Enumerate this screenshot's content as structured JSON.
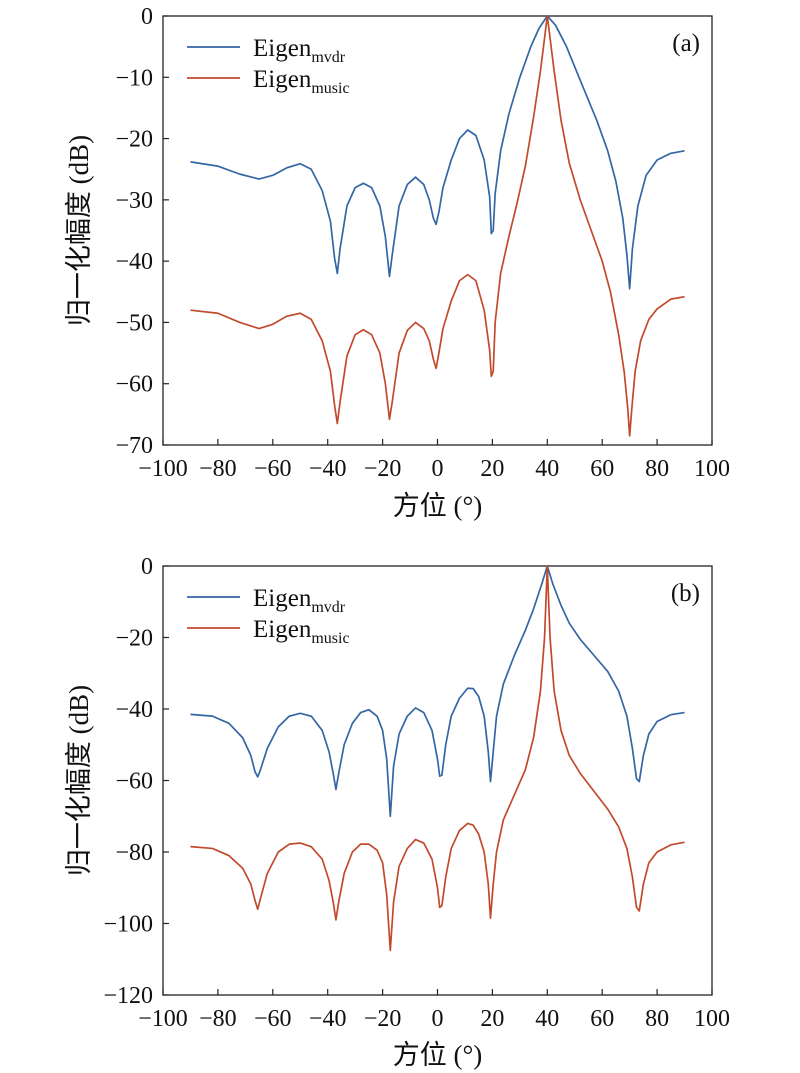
{
  "chart_data": [
    {
      "type": "line",
      "panel_label": "(a)",
      "xlabel": "方位 (°)",
      "ylabel": "归一化幅度 (dB)",
      "xlim": [
        -100,
        100
      ],
      "ylim": [
        -70,
        0
      ],
      "xticks": [
        -100,
        -80,
        -60,
        -40,
        -20,
        0,
        20,
        40,
        60,
        80,
        100
      ],
      "yticks": [
        0,
        -10,
        -20,
        -30,
        -40,
        -50,
        -60,
        -70
      ],
      "grid": false,
      "legend_position": "top-left",
      "colors": {
        "mvdr": "#3466a3",
        "music": "#c24a2c"
      },
      "series": [
        {
          "name": "Eigen",
          "subscript": "mvdr",
          "color": "#3466a3",
          "points": [
            [
              -90,
              -23.8
            ],
            [
              -80,
              -24.5
            ],
            [
              -72,
              -25.8
            ],
            [
              -65,
              -26.6
            ],
            [
              -60,
              -26.0
            ],
            [
              -55,
              -24.8
            ],
            [
              -50,
              -24.1
            ],
            [
              -46,
              -25.0
            ],
            [
              -42,
              -28.5
            ],
            [
              -39,
              -33.5
            ],
            [
              -37.5,
              -39.5
            ],
            [
              -36.5,
              -42.0
            ],
            [
              -35.5,
              -38.0
            ],
            [
              -33,
              -31.0
            ],
            [
              -30,
              -28.0
            ],
            [
              -27,
              -27.3
            ],
            [
              -24,
              -28.0
            ],
            [
              -21,
              -31.0
            ],
            [
              -19,
              -36.0
            ],
            [
              -17.5,
              -42.5
            ],
            [
              -16.5,
              -39.0
            ],
            [
              -14,
              -31.0
            ],
            [
              -11,
              -27.5
            ],
            [
              -8,
              -26.3
            ],
            [
              -5,
              -27.5
            ],
            [
              -3,
              -30.0
            ],
            [
              -1.5,
              -33.0
            ],
            [
              -0.5,
              -34.0
            ],
            [
              0.5,
              -32.0
            ],
            [
              2,
              -28.0
            ],
            [
              5,
              -23.5
            ],
            [
              8,
              -20.0
            ],
            [
              11,
              -18.6
            ],
            [
              14,
              -19.5
            ],
            [
              17,
              -23.5
            ],
            [
              19,
              -29.5
            ],
            [
              19.6,
              -35.5
            ],
            [
              20.3,
              -35.0
            ],
            [
              21,
              -29.0
            ],
            [
              23,
              -22.0
            ],
            [
              26,
              -16.0
            ],
            [
              30,
              -10.0
            ],
            [
              34,
              -5.0
            ],
            [
              37,
              -2.0
            ],
            [
              40,
              0.0
            ],
            [
              43,
              -1.5
            ],
            [
              47,
              -5.0
            ],
            [
              52,
              -10.5
            ],
            [
              58,
              -17.0
            ],
            [
              62,
              -22.0
            ],
            [
              65,
              -27.0
            ],
            [
              67.5,
              -33.0
            ],
            [
              69,
              -39.0
            ],
            [
              70,
              -44.5
            ],
            [
              71,
              -38.0
            ],
            [
              73,
              -31.0
            ],
            [
              76,
              -26.0
            ],
            [
              80,
              -23.5
            ],
            [
              85,
              -22.4
            ],
            [
              90,
              -22.0
            ]
          ]
        },
        {
          "name": "Eigen",
          "subscript": "music",
          "color": "#c24a2c",
          "points": [
            [
              -90,
              -48.0
            ],
            [
              -80,
              -48.5
            ],
            [
              -72,
              -50.0
            ],
            [
              -65,
              -51.0
            ],
            [
              -60,
              -50.3
            ],
            [
              -55,
              -49.0
            ],
            [
              -50,
              -48.5
            ],
            [
              -46,
              -49.5
            ],
            [
              -42,
              -53.0
            ],
            [
              -39,
              -58.0
            ],
            [
              -37.5,
              -63.5
            ],
            [
              -36.5,
              -66.5
            ],
            [
              -35.5,
              -63.0
            ],
            [
              -33,
              -55.5
            ],
            [
              -30,
              -52.0
            ],
            [
              -27,
              -51.2
            ],
            [
              -24,
              -52.0
            ],
            [
              -21,
              -55.0
            ],
            [
              -19,
              -60.0
            ],
            [
              -17.5,
              -65.8
            ],
            [
              -16.5,
              -63.0
            ],
            [
              -14,
              -55.0
            ],
            [
              -11,
              -51.3
            ],
            [
              -8,
              -50.0
            ],
            [
              -5,
              -51.0
            ],
            [
              -3,
              -53.0
            ],
            [
              -1.5,
              -56.0
            ],
            [
              -0.5,
              -57.5
            ],
            [
              0.5,
              -55.0
            ],
            [
              2,
              -51.0
            ],
            [
              5,
              -46.5
            ],
            [
              8,
              -43.2
            ],
            [
              11,
              -42.2
            ],
            [
              14,
              -43.2
            ],
            [
              17,
              -48.0
            ],
            [
              19,
              -54.5
            ],
            [
              19.6,
              -58.8
            ],
            [
              20.3,
              -58.0
            ],
            [
              21,
              -50.0
            ],
            [
              23,
              -42.0
            ],
            [
              26,
              -36.0
            ],
            [
              29,
              -30.5
            ],
            [
              32,
              -24.5
            ],
            [
              35,
              -16.5
            ],
            [
              37.5,
              -9.0
            ],
            [
              40,
              0.0
            ],
            [
              42.5,
              -9.0
            ],
            [
              45,
              -17.0
            ],
            [
              48,
              -24.0
            ],
            [
              52,
              -30.0
            ],
            [
              56,
              -35.0
            ],
            [
              60,
              -40.0
            ],
            [
              63,
              -45.0
            ],
            [
              66,
              -52.0
            ],
            [
              68,
              -58.0
            ],
            [
              69.3,
              -64.0
            ],
            [
              70,
              -68.5
            ],
            [
              70.8,
              -64.0
            ],
            [
              72,
              -58.0
            ],
            [
              74,
              -53.0
            ],
            [
              77,
              -49.5
            ],
            [
              80,
              -47.8
            ],
            [
              85,
              -46.2
            ],
            [
              90,
              -45.8
            ]
          ]
        }
      ]
    },
    {
      "type": "line",
      "panel_label": "(b)",
      "xlabel": "方位 (°)",
      "ylabel": "归一化幅度 (dB)",
      "xlim": [
        -100,
        100
      ],
      "ylim": [
        -120,
        0
      ],
      "xticks": [
        -100,
        -80,
        -60,
        -40,
        -20,
        0,
        20,
        40,
        60,
        80,
        100
      ],
      "yticks": [
        0,
        -20,
        -40,
        -60,
        -80,
        -100,
        -120
      ],
      "grid": false,
      "legend_position": "top-left",
      "colors": {
        "mvdr": "#3466a3",
        "music": "#c24a2c"
      },
      "series": [
        {
          "name": "Eigen",
          "subscript": "mvdr",
          "color": "#3466a3",
          "points": [
            [
              -90,
              -41.5
            ],
            [
              -82,
              -42.0
            ],
            [
              -76,
              -44.0
            ],
            [
              -71,
              -48.0
            ],
            [
              -68,
              -53.0
            ],
            [
              -66.5,
              -57.5
            ],
            [
              -65.5,
              -59.0
            ],
            [
              -64.5,
              -57.0
            ],
            [
              -62,
              -51.0
            ],
            [
              -58,
              -45.0
            ],
            [
              -54,
              -42.0
            ],
            [
              -50,
              -41.2
            ],
            [
              -46,
              -42.0
            ],
            [
              -42,
              -46.0
            ],
            [
              -39.5,
              -52.0
            ],
            [
              -38,
              -58.0
            ],
            [
              -37,
              -62.5
            ],
            [
              -36,
              -58.0
            ],
            [
              -34,
              -50.0
            ],
            [
              -31,
              -44.0
            ],
            [
              -28,
              -41.0
            ],
            [
              -25,
              -40.2
            ],
            [
              -22,
              -42.0
            ],
            [
              -20,
              -46.0
            ],
            [
              -18.5,
              -54.0
            ],
            [
              -17.2,
              -70.0
            ],
            [
              -16,
              -56.0
            ],
            [
              -14,
              -47.0
            ],
            [
              -11,
              -42.0
            ],
            [
              -8,
              -39.7
            ],
            [
              -5,
              -41.0
            ],
            [
              -2,
              -46.0
            ],
            [
              0,
              -54.0
            ],
            [
              0.8,
              -58.8
            ],
            [
              1.6,
              -58.5
            ],
            [
              3,
              -50.0
            ],
            [
              5,
              -42.0
            ],
            [
              8,
              -37.0
            ],
            [
              11,
              -34.2
            ],
            [
              13,
              -34.3
            ],
            [
              15,
              -36.5
            ],
            [
              17,
              -42.0
            ],
            [
              18.5,
              -52.0
            ],
            [
              19.3,
              -60.3
            ],
            [
              20.3,
              -52.0
            ],
            [
              21.5,
              -42.0
            ],
            [
              24,
              -33.0
            ],
            [
              28,
              -25.0
            ],
            [
              32,
              -18.0
            ],
            [
              35,
              -12.0
            ],
            [
              38,
              -5.0
            ],
            [
              40,
              0.0
            ],
            [
              42,
              -5.0
            ],
            [
              45,
              -11.0
            ],
            [
              48,
              -16.0
            ],
            [
              52,
              -20.5
            ],
            [
              57,
              -25.0
            ],
            [
              62,
              -29.5
            ],
            [
              66,
              -35.0
            ],
            [
              69,
              -42.0
            ],
            [
              71,
              -51.0
            ],
            [
              72.5,
              -59.5
            ],
            [
              73.5,
              -60.3
            ],
            [
              75,
              -53.0
            ],
            [
              77,
              -47.0
            ],
            [
              80,
              -43.5
            ],
            [
              85,
              -41.6
            ],
            [
              90,
              -41.0
            ]
          ]
        },
        {
          "name": "Eigen",
          "subscript": "music",
          "color": "#c24a2c",
          "points": [
            [
              -90,
              -78.5
            ],
            [
              -82,
              -79.0
            ],
            [
              -76,
              -81.0
            ],
            [
              -71,
              -84.5
            ],
            [
              -68,
              -89.0
            ],
            [
              -66.5,
              -93.5
            ],
            [
              -65.5,
              -96.0
            ],
            [
              -64.5,
              -93.0
            ],
            [
              -62,
              -86.0
            ],
            [
              -58,
              -80.0
            ],
            [
              -54,
              -77.8
            ],
            [
              -50,
              -77.5
            ],
            [
              -46,
              -78.5
            ],
            [
              -42,
              -82.0
            ],
            [
              -39.5,
              -88.0
            ],
            [
              -38,
              -94.0
            ],
            [
              -37,
              -99.0
            ],
            [
              -36,
              -94.0
            ],
            [
              -34,
              -86.0
            ],
            [
              -31,
              -80.0
            ],
            [
              -28,
              -77.8
            ],
            [
              -25,
              -77.8
            ],
            [
              -22,
              -79.5
            ],
            [
              -20,
              -83.0
            ],
            [
              -18.5,
              -92.0
            ],
            [
              -17.2,
              -107.5
            ],
            [
              -16,
              -94.0
            ],
            [
              -14,
              -84.0
            ],
            [
              -11,
              -79.0
            ],
            [
              -8,
              -76.5
            ],
            [
              -5,
              -77.5
            ],
            [
              -2,
              -82.0
            ],
            [
              0,
              -90.0
            ],
            [
              0.8,
              -95.5
            ],
            [
              1.6,
              -95.0
            ],
            [
              3,
              -87.0
            ],
            [
              5,
              -79.0
            ],
            [
              8,
              -74.0
            ],
            [
              11,
              -72.0
            ],
            [
              13,
              -72.5
            ],
            [
              15,
              -75.0
            ],
            [
              17,
              -80.0
            ],
            [
              18.5,
              -89.0
            ],
            [
              19.3,
              -98.5
            ],
            [
              20.3,
              -89.0
            ],
            [
              21.5,
              -80.0
            ],
            [
              24,
              -71.0
            ],
            [
              28,
              -64.0
            ],
            [
              32,
              -57.0
            ],
            [
              35,
              -48.0
            ],
            [
              37.5,
              -35.0
            ],
            [
              39,
              -20.0
            ],
            [
              40,
              0.0
            ],
            [
              41,
              -20.0
            ],
            [
              42.5,
              -35.0
            ],
            [
              45,
              -46.0
            ],
            [
              48,
              -53.0
            ],
            [
              52,
              -58.0
            ],
            [
              57,
              -63.0
            ],
            [
              62,
              -68.0
            ],
            [
              66,
              -73.0
            ],
            [
              69,
              -79.0
            ],
            [
              71,
              -87.0
            ],
            [
              72.5,
              -95.5
            ],
            [
              73.5,
              -96.5
            ],
            [
              75,
              -89.0
            ],
            [
              77,
              -83.0
            ],
            [
              80,
              -80.0
            ],
            [
              85,
              -78.0
            ],
            [
              90,
              -77.3
            ]
          ]
        }
      ]
    }
  ]
}
